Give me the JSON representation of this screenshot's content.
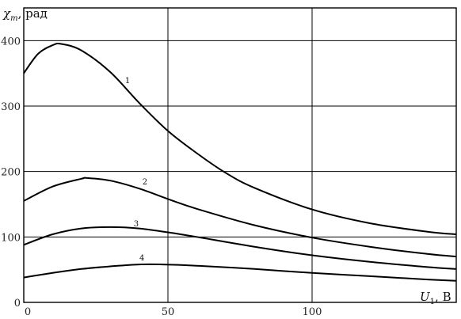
{
  "chart_data": {
    "type": "line",
    "title": "",
    "ylabel": {
      "symbol": "χ",
      "subscript": "m",
      "unit": ", рад"
    },
    "xlabel": {
      "symbol": "U",
      "subscript": "1",
      "unit": ", В"
    },
    "xlim": [
      0,
      150
    ],
    "ylim": [
      0,
      450
    ],
    "x_ticks": [
      0,
      50,
      100
    ],
    "y_ticks": [
      0,
      100,
      200,
      300,
      400
    ],
    "grid": true,
    "series": [
      {
        "name": "1",
        "x": [
          0,
          5,
          10,
          13,
          20,
          30,
          40,
          50,
          60,
          70,
          80,
          100,
          120,
          140,
          150
        ],
        "y": [
          350,
          380,
          393,
          395,
          385,
          352,
          305,
          262,
          228,
          198,
          175,
          142,
          121,
          108,
          104
        ]
      },
      {
        "name": "2",
        "x": [
          0,
          10,
          20,
          22,
          30,
          40,
          50,
          60,
          80,
          100,
          120,
          140,
          150
        ],
        "y": [
          155,
          177,
          189,
          190,
          186,
          174,
          158,
          143,
          118,
          99,
          85,
          74,
          70
        ]
      },
      {
        "name": "3",
        "x": [
          0,
          10,
          20,
          30,
          40,
          50,
          60,
          80,
          100,
          120,
          140,
          150
        ],
        "y": [
          88,
          104,
          113,
          115,
          113,
          107,
          100,
          85,
          72,
          62,
          54,
          51
        ]
      },
      {
        "name": "4",
        "x": [
          0,
          10,
          20,
          30,
          40,
          48,
          60,
          80,
          100,
          120,
          140,
          150
        ],
        "y": [
          38,
          45,
          51,
          55,
          58,
          58,
          56,
          51,
          45,
          40,
          35,
          33
        ]
      }
    ],
    "curve_labels": [
      {
        "text": "1",
        "x": 36,
        "y": 335
      },
      {
        "text": "2",
        "x": 42,
        "y": 180
      },
      {
        "text": "3",
        "x": 39,
        "y": 116
      },
      {
        "text": "4",
        "x": 41,
        "y": 64
      }
    ]
  }
}
